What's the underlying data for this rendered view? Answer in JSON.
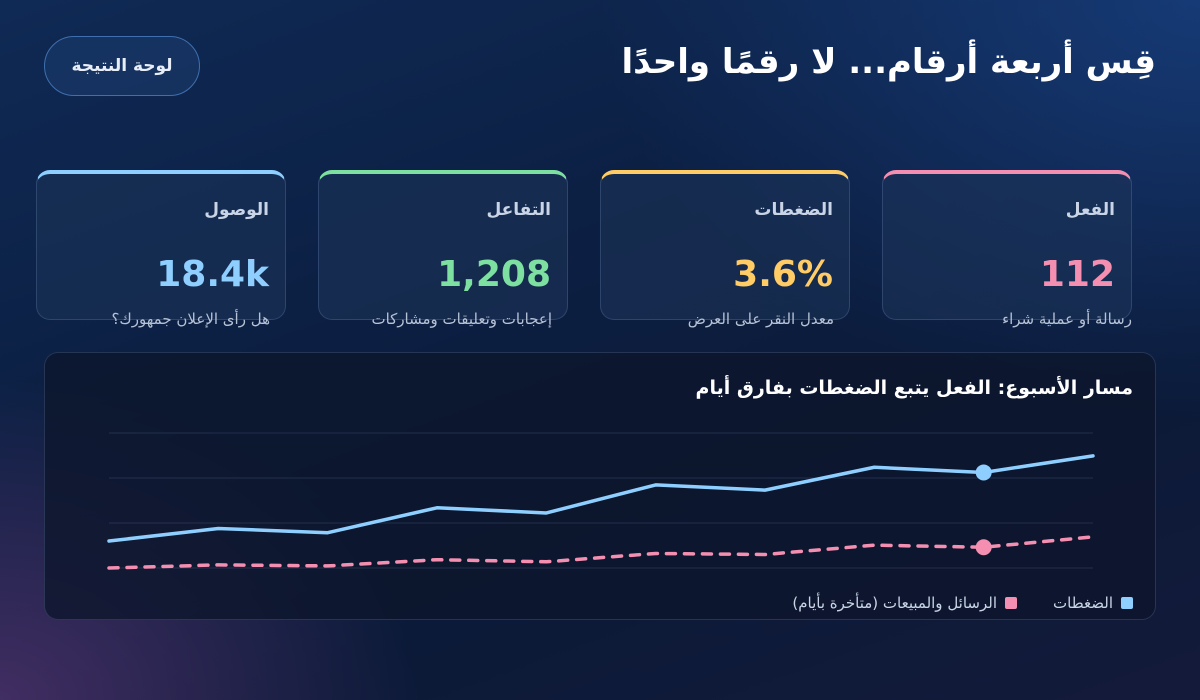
{
  "header": {
    "title": "قِس أربعة أرقام... لا رقمًا واحدًا",
    "scoreboard_button": "لوحة النتيجة"
  },
  "cards": [
    {
      "label": "الفعل",
      "value": "112",
      "caption": "رسالة أو عملية شراء",
      "color": "#f48fb1"
    },
    {
      "label": "الضغطات",
      "value": "3.6%",
      "caption": "معدل النقر على العرض",
      "color": "#ffcc66"
    },
    {
      "label": "التفاعل",
      "value": "1,208",
      "caption": "إعجابات وتعليقات ومشاركات",
      "color": "#7ee0a0"
    },
    {
      "label": "الوصول",
      "value": "18.4k",
      "caption": "هل رأى الإعلان جمهورك؟",
      "color": "#8ecfff"
    }
  ],
  "chart_data": {
    "type": "line",
    "title": "مسار الأسبوع: الفعل يتبع الضغطات بفارق أيام",
    "xlabel": "",
    "ylabel": "",
    "grid": true,
    "legend_position": "bottom-right",
    "x": [
      1,
      2,
      3,
      4,
      5,
      6,
      7,
      8,
      9,
      10
    ],
    "series": [
      {
        "name": "الضغطات",
        "color": "#8ecfff",
        "style": "solid",
        "values": [
          26,
          38,
          34,
          58,
          53,
          80,
          75,
          97,
          92,
          108
        ],
        "highlight_index": 9
      },
      {
        "name": "الرسائل والمبيعات (متأخرة بأيام)",
        "color": "#f48fb1",
        "style": "dashed",
        "values": [
          0,
          3,
          2,
          8,
          6,
          14,
          13,
          22,
          20,
          30
        ],
        "highlight_index": 9
      }
    ],
    "x_ticks": 11,
    "ylim": [
      0,
      130
    ]
  }
}
